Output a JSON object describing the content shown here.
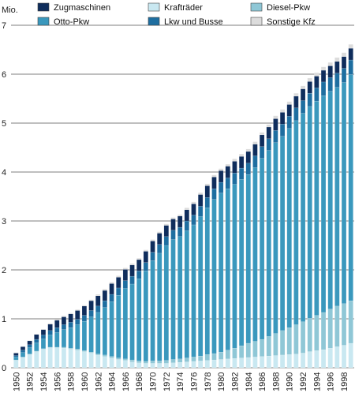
{
  "chart_data": {
    "type": "bar",
    "stacked": true,
    "unit_label": "Mio.",
    "x": [
      1950,
      1951,
      1952,
      1953,
      1954,
      1955,
      1956,
      1957,
      1958,
      1959,
      1960,
      1961,
      1962,
      1963,
      1964,
      1965,
      1966,
      1967,
      1968,
      1969,
      1970,
      1971,
      1972,
      1973,
      1974,
      1975,
      1976,
      1977,
      1978,
      1979,
      1980,
      1981,
      1982,
      1983,
      1984,
      1985,
      1986,
      1987,
      1988,
      1989,
      1990,
      1991,
      1992,
      1993,
      1994,
      1995,
      1996,
      1997,
      1998,
      1999
    ],
    "x_tick_labels": [
      "1950",
      "1952",
      "1954",
      "1956",
      "1958",
      "1960",
      "1962",
      "1964",
      "1966",
      "1968",
      "1970",
      "1972",
      "1974",
      "1976",
      "1978",
      "1980",
      "1982",
      "1984",
      "1986",
      "1988",
      "1990",
      "1992",
      "1994",
      "1996",
      "1998"
    ],
    "ylim": [
      0,
      7
    ],
    "y_ticks": [
      0,
      1,
      2,
      3,
      4,
      5,
      6,
      7
    ],
    "grid": true,
    "legend_position": "top",
    "series": [
      {
        "name": "Krafträder",
        "color": "#c9e8f1",
        "values": [
          0.15,
          0.21,
          0.27,
          0.33,
          0.38,
          0.41,
          0.41,
          0.4,
          0.38,
          0.36,
          0.33,
          0.3,
          0.26,
          0.23,
          0.2,
          0.17,
          0.15,
          0.12,
          0.1,
          0.09,
          0.09,
          0.09,
          0.09,
          0.1,
          0.11,
          0.12,
          0.13,
          0.14,
          0.15,
          0.16,
          0.17,
          0.18,
          0.19,
          0.2,
          0.21,
          0.22,
          0.23,
          0.24,
          0.25,
          0.26,
          0.27,
          0.28,
          0.3,
          0.33,
          0.35,
          0.37,
          0.4,
          0.43,
          0.46,
          0.5
        ]
      },
      {
        "name": "Diesel-Pkw",
        "color": "#8fc7d6",
        "values": [
          0.01,
          0.01,
          0.01,
          0.01,
          0.01,
          0.01,
          0.01,
          0.02,
          0.02,
          0.02,
          0.02,
          0.02,
          0.02,
          0.03,
          0.03,
          0.03,
          0.03,
          0.04,
          0.04,
          0.04,
          0.05,
          0.05,
          0.06,
          0.07,
          0.07,
          0.08,
          0.09,
          0.1,
          0.12,
          0.13,
          0.15,
          0.18,
          0.21,
          0.25,
          0.29,
          0.32,
          0.35,
          0.4,
          0.45,
          0.5,
          0.55,
          0.6,
          0.64,
          0.68,
          0.72,
          0.76,
          0.8,
          0.83,
          0.85,
          0.87
        ]
      },
      {
        "name": "Otto-Pkw",
        "color": "#3a98bd",
        "values": [
          0.06,
          0.09,
          0.13,
          0.17,
          0.2,
          0.25,
          0.3,
          0.36,
          0.42,
          0.5,
          0.6,
          0.72,
          0.85,
          0.97,
          1.12,
          1.28,
          1.44,
          1.55,
          1.68,
          1.85,
          2.05,
          2.2,
          2.35,
          2.45,
          2.5,
          2.6,
          2.7,
          2.85,
          3.0,
          3.15,
          3.25,
          3.3,
          3.35,
          3.4,
          3.45,
          3.55,
          3.7,
          3.8,
          3.9,
          3.97,
          4.07,
          4.17,
          4.26,
          4.33,
          4.38,
          4.43,
          4.45,
          4.47,
          4.52,
          4.62
        ]
      },
      {
        "name": "Lkw und Busse",
        "color": "#1e6ea0",
        "values": [
          0.03,
          0.05,
          0.06,
          0.07,
          0.08,
          0.09,
          0.1,
          0.1,
          0.11,
          0.11,
          0.12,
          0.13,
          0.13,
          0.14,
          0.15,
          0.15,
          0.16,
          0.16,
          0.16,
          0.17,
          0.17,
          0.18,
          0.18,
          0.19,
          0.19,
          0.2,
          0.2,
          0.21,
          0.21,
          0.22,
          0.22,
          0.22,
          0.23,
          0.23,
          0.23,
          0.24,
          0.24,
          0.24,
          0.25,
          0.25,
          0.25,
          0.26,
          0.26,
          0.27,
          0.27,
          0.28,
          0.28,
          0.29,
          0.29,
          0.3
        ]
      },
      {
        "name": "Zugmaschinen",
        "color": "#0f2d5c",
        "values": [
          0.05,
          0.07,
          0.08,
          0.1,
          0.11,
          0.13,
          0.15,
          0.16,
          0.17,
          0.18,
          0.19,
          0.2,
          0.21,
          0.21,
          0.22,
          0.22,
          0.23,
          0.23,
          0.23,
          0.23,
          0.23,
          0.23,
          0.23,
          0.23,
          0.23,
          0.23,
          0.23,
          0.24,
          0.24,
          0.24,
          0.24,
          0.24,
          0.24,
          0.24,
          0.24,
          0.24,
          0.24,
          0.24,
          0.24,
          0.24,
          0.24,
          0.24,
          0.24,
          0.24,
          0.24,
          0.24,
          0.24,
          0.24,
          0.24,
          0.24
        ]
      },
      {
        "name": "Sonstige Kfz",
        "color": "#dcdcdc",
        "values": [
          0.01,
          0.01,
          0.01,
          0.01,
          0.01,
          0.02,
          0.02,
          0.02,
          0.02,
          0.02,
          0.02,
          0.02,
          0.03,
          0.03,
          0.03,
          0.03,
          0.03,
          0.03,
          0.03,
          0.03,
          0.03,
          0.03,
          0.03,
          0.03,
          0.03,
          0.04,
          0.04,
          0.04,
          0.04,
          0.04,
          0.04,
          0.04,
          0.05,
          0.05,
          0.05,
          0.05,
          0.05,
          0.05,
          0.06,
          0.06,
          0.06,
          0.06,
          0.06,
          0.07,
          0.07,
          0.07,
          0.07,
          0.08,
          0.08,
          0.08
        ]
      }
    ],
    "legend": [
      {
        "label": "Zugmaschinen",
        "color": "#0f2d5c"
      },
      {
        "label": "Otto-Pkw",
        "color": "#3a98bd"
      },
      {
        "label": "Krafträder",
        "color": "#c9e8f1"
      },
      {
        "label": "Lkw und Busse",
        "color": "#1e6ea0"
      },
      {
        "label": "Diesel-Pkw",
        "color": "#8fc7d6"
      },
      {
        "label": "Sonstige Kfz",
        "color": "#dcdcdc"
      }
    ]
  }
}
